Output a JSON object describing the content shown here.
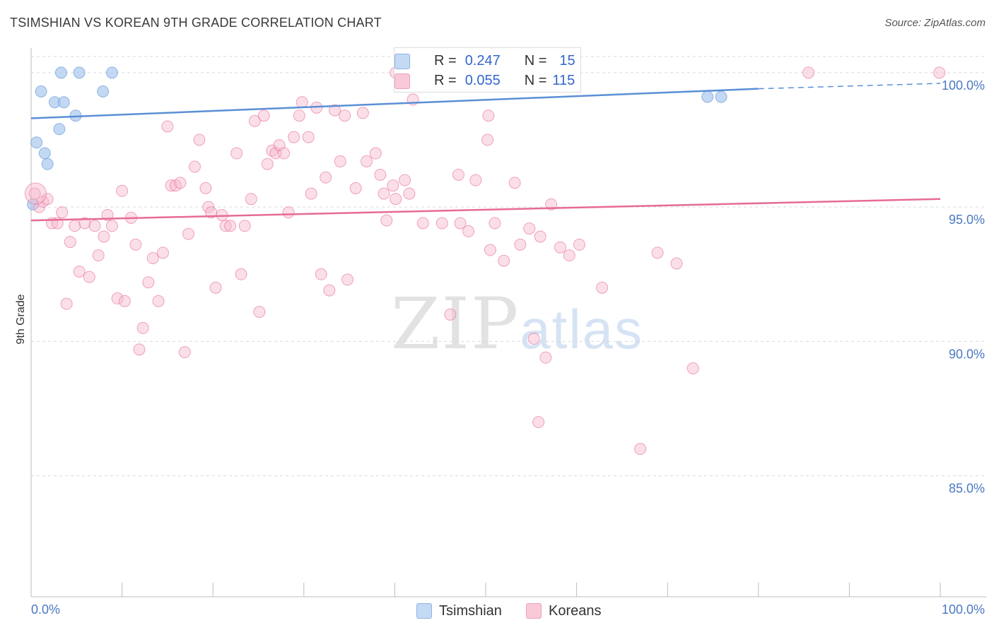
{
  "title": "TSIMSHIAN VS KOREAN 9TH GRADE CORRELATION CHART",
  "source": "Source: ZipAtlas.com",
  "watermark": {
    "zip": "ZIP",
    "atlas": "atlas"
  },
  "legend": {
    "rows": [
      {
        "r_label": "R =",
        "r_value": "0.247",
        "n_label": "N =",
        "n_value": "15",
        "color": "#aac8ee"
      },
      {
        "r_label": "R =",
        "r_value": "0.055",
        "n_label": "N =",
        "n_value": "115",
        "color": "#f6b8cb"
      }
    ]
  },
  "bottom_legend": {
    "tsimshian": "Tsimshian",
    "koreans": "Koreans"
  },
  "chart_data": {
    "type": "scatter",
    "title": "TSIMSHIAN VS KOREAN 9TH GRADE CORRELATION CHART",
    "xlabel": "",
    "ylabel": "9th Grade",
    "xlim": [
      0,
      100
    ],
    "ylim": [
      80.5,
      100.6
    ],
    "x_tick_labels": [
      "0.0%",
      "100.0%"
    ],
    "y_ticks": [
      85,
      90,
      95,
      100
    ],
    "y_tick_labels": [
      "85.0%",
      "90.0%",
      "95.0%",
      "100.0%"
    ],
    "grid": true,
    "legend_position": "top-center",
    "series": [
      {
        "name": "Tsimshian",
        "color": "#5b8fd6",
        "fill": "#aac8ee",
        "r": 0.247,
        "n": 15,
        "trend": {
          "x0": 0,
          "y0": 98.3,
          "x1": 80,
          "y1": 99.4,
          "dashed_to": 100,
          "dashed_y": 99.6
        },
        "points": [
          [
            0.2,
            95.1
          ],
          [
            0.6,
            97.4
          ],
          [
            1.1,
            99.3
          ],
          [
            1.5,
            97.0
          ],
          [
            1.8,
            96.6
          ],
          [
            2.6,
            98.9
          ],
          [
            3.1,
            97.9
          ],
          [
            3.6,
            98.9
          ],
          [
            4.9,
            98.4
          ],
          [
            3.3,
            100.0
          ],
          [
            5.3,
            100.0
          ],
          [
            7.9,
            99.3
          ],
          [
            8.9,
            100.0
          ],
          [
            74.4,
            99.1
          ],
          [
            75.9,
            99.1
          ]
        ]
      },
      {
        "name": "Koreans",
        "color": "#e66a98",
        "fill": "#f6b8cb",
        "r": 0.055,
        "n": 115,
        "trend": {
          "x0": 0,
          "y0": 94.5,
          "x1": 100,
          "y1": 95.3
        },
        "points": [
          [
            0.4,
            95.5
          ],
          [
            0.9,
            95.0
          ],
          [
            1.3,
            95.2
          ],
          [
            1.8,
            95.3
          ],
          [
            2.3,
            94.4
          ],
          [
            2.9,
            94.4
          ],
          [
            3.4,
            94.8
          ],
          [
            4.3,
            93.7
          ],
          [
            4.8,
            94.3
          ],
          [
            3.9,
            91.4
          ],
          [
            5.3,
            92.6
          ],
          [
            5.9,
            94.4
          ],
          [
            6.4,
            92.4
          ],
          [
            7.0,
            94.3
          ],
          [
            7.4,
            93.2
          ],
          [
            8.0,
            93.9
          ],
          [
            8.4,
            94.7
          ],
          [
            8.9,
            94.3
          ],
          [
            9.5,
            91.6
          ],
          [
            10.3,
            91.5
          ],
          [
            11.0,
            94.6
          ],
          [
            10.0,
            95.6
          ],
          [
            11.5,
            93.6
          ],
          [
            11.9,
            89.7
          ],
          [
            12.3,
            90.5
          ],
          [
            12.9,
            92.2
          ],
          [
            13.4,
            93.1
          ],
          [
            14.0,
            91.5
          ],
          [
            14.5,
            93.3
          ],
          [
            15.0,
            98.0
          ],
          [
            15.4,
            95.8
          ],
          [
            15.9,
            95.8
          ],
          [
            16.4,
            95.9
          ],
          [
            16.9,
            89.6
          ],
          [
            17.3,
            94.0
          ],
          [
            18.0,
            96.5
          ],
          [
            18.5,
            97.5
          ],
          [
            19.2,
            95.7
          ],
          [
            19.5,
            95.0
          ],
          [
            19.8,
            94.8
          ],
          [
            20.3,
            92.0
          ],
          [
            21.0,
            94.7
          ],
          [
            21.4,
            94.3
          ],
          [
            21.9,
            94.3
          ],
          [
            22.6,
            97.0
          ],
          [
            23.1,
            92.5
          ],
          [
            23.5,
            94.3
          ],
          [
            24.2,
            95.3
          ],
          [
            24.6,
            98.2
          ],
          [
            25.1,
            91.1
          ],
          [
            25.6,
            98.4
          ],
          [
            26.0,
            96.6
          ],
          [
            26.5,
            97.1
          ],
          [
            26.9,
            97.0
          ],
          [
            27.3,
            97.3
          ],
          [
            27.8,
            97.0
          ],
          [
            28.3,
            94.8
          ],
          [
            28.9,
            97.6
          ],
          [
            29.5,
            98.4
          ],
          [
            29.8,
            98.9
          ],
          [
            30.5,
            97.6
          ],
          [
            30.8,
            95.5
          ],
          [
            31.4,
            98.7
          ],
          [
            31.9,
            92.5
          ],
          [
            32.4,
            96.1
          ],
          [
            32.8,
            91.9
          ],
          [
            33.4,
            98.6
          ],
          [
            34.0,
            96.7
          ],
          [
            34.5,
            98.4
          ],
          [
            34.8,
            92.3
          ],
          [
            35.7,
            95.7
          ],
          [
            36.5,
            98.5
          ],
          [
            36.9,
            96.7
          ],
          [
            37.9,
            97.0
          ],
          [
            38.4,
            96.2
          ],
          [
            38.8,
            95.5
          ],
          [
            39.1,
            94.5
          ],
          [
            39.8,
            95.8
          ],
          [
            40.1,
            95.3
          ],
          [
            41.1,
            96.0
          ],
          [
            41.6,
            95.5
          ],
          [
            42.0,
            99.0
          ],
          [
            43.1,
            94.4
          ],
          [
            40.1,
            100.0
          ],
          [
            45.2,
            94.4
          ],
          [
            46.1,
            91.0
          ],
          [
            47.0,
            96.2
          ],
          [
            47.2,
            94.4
          ],
          [
            48.1,
            94.1
          ],
          [
            48.9,
            96.0
          ],
          [
            49.5,
            99.9
          ],
          [
            50.3,
            98.4
          ],
          [
            50.2,
            97.5
          ],
          [
            50.5,
            93.4
          ],
          [
            51.0,
            94.4
          ],
          [
            52.0,
            93.0
          ],
          [
            53.2,
            95.9
          ],
          [
            53.8,
            93.6
          ],
          [
            54.8,
            94.2
          ],
          [
            55.3,
            90.1
          ],
          [
            56.0,
            93.9
          ],
          [
            56.6,
            89.4
          ],
          [
            55.8,
            87.0
          ],
          [
            57.2,
            95.1
          ],
          [
            58.2,
            93.5
          ],
          [
            59.2,
            93.2
          ],
          [
            60.3,
            93.6
          ],
          [
            62.8,
            92.0
          ],
          [
            67.0,
            86.0
          ],
          [
            68.9,
            93.3
          ],
          [
            71.0,
            92.9
          ],
          [
            72.8,
            89.0
          ],
          [
            85.5,
            100.0
          ],
          [
            99.9,
            100.0
          ],
          [
            0.5,
            95.5
          ]
        ]
      }
    ]
  }
}
